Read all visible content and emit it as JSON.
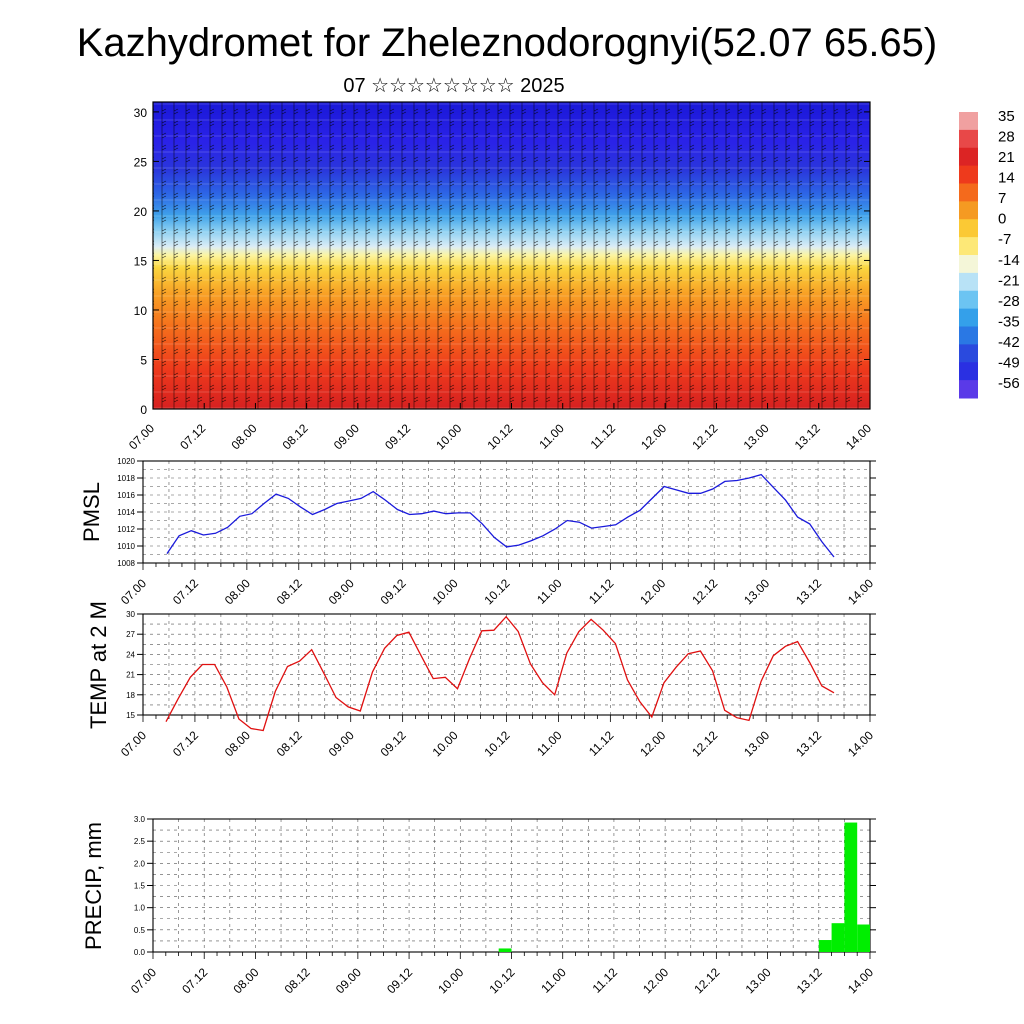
{
  "title": "Kazhydromet for Zheleznodorognyi(52.07 65.65)",
  "subtitle": "07 ☆☆☆☆☆☆☆☆ 2025",
  "colors": {
    "pmsl_line": "#1a1adb",
    "temp_line": "#e01010",
    "precip_bar": "#00ee00"
  },
  "chart_data": [
    {
      "type": "heatmap",
      "name": "cross-section",
      "x_tick_labels": [
        "07.00",
        "07.12",
        "08.00",
        "08.12",
        "09.00",
        "09.12",
        "10.00",
        "10.12",
        "11.00",
        "11.12",
        "12.00",
        "12.12",
        "13.00",
        "13.12",
        "14.00"
      ],
      "y_ticks": [
        0,
        5,
        10,
        15,
        20,
        25,
        30
      ],
      "ylim": [
        0,
        31
      ],
      "colorbar_labels": [
        "35",
        "28",
        "21",
        "14",
        "7",
        "0",
        "-7",
        "-14",
        "-21",
        "-28",
        "-35",
        "-42",
        "-49",
        "-56"
      ],
      "colorbar_values": [
        35,
        28,
        21,
        14,
        7,
        0,
        -7,
        -14,
        -21,
        -28,
        -35,
        -42,
        -49,
        -56
      ],
      "overlay": "wind barbs and streamlines"
    },
    {
      "type": "line",
      "name": "pmsl",
      "ylabel": "PMSL",
      "ylim": [
        1008,
        1020
      ],
      "y_ticks": [
        1008,
        1010,
        1012,
        1014,
        1016,
        1018,
        1020
      ],
      "x_tick_labels": [
        "07.00",
        "07.12",
        "08.00",
        "08.12",
        "09.00",
        "09.12",
        "10.00",
        "10.12",
        "11.00",
        "11.12",
        "12.00",
        "12.12",
        "13.00",
        "13.12",
        "14.00"
      ],
      "x_hours": [
        0,
        3,
        6,
        9,
        12,
        15,
        18,
        21,
        24,
        27,
        30,
        33,
        36,
        39,
        42,
        45,
        48,
        51,
        54,
        57,
        60,
        63,
        66,
        69,
        72,
        75,
        78,
        81,
        84,
        87,
        90,
        93,
        96,
        99,
        102,
        105,
        108,
        111,
        114,
        117,
        120,
        123,
        126,
        129,
        132,
        135,
        138,
        141,
        144,
        147,
        150,
        153,
        156,
        159,
        162,
        165
      ],
      "values": [
        1009.1,
        1011.2,
        1011.8,
        1011.3,
        1011.5,
        1012.2,
        1013.5,
        1013.8,
        1015.0,
        1016.1,
        1015.6,
        1014.6,
        1013.7,
        1014.3,
        1015.0,
        1015.3,
        1015.6,
        1016.4,
        1015.4,
        1014.3,
        1013.7,
        1013.8,
        1014.1,
        1013.8,
        1013.9,
        1013.9,
        1012.6,
        1011.0,
        1009.9,
        1010.1,
        1010.6,
        1011.2,
        1012.0,
        1013.0,
        1012.8,
        1012.1,
        1012.3,
        1012.5,
        1013.4,
        1014.2,
        1015.6,
        1017.0,
        1016.6,
        1016.2,
        1016.2,
        1016.7,
        1017.6,
        1017.7,
        1018.0,
        1018.4,
        1016.9,
        1015.4,
        1013.4,
        1012.6,
        1010.5,
        1008.7
      ]
    },
    {
      "type": "line",
      "name": "temperature",
      "ylabel": "TEMP at 2 M",
      "ylim": [
        15,
        30
      ],
      "y_ticks": [
        15,
        18,
        21,
        24,
        27,
        30
      ],
      "x_tick_labels": [
        "07.00",
        "07.12",
        "08.00",
        "08.12",
        "09.00",
        "09.12",
        "10.00",
        "10.12",
        "11.00",
        "11.12",
        "12.00",
        "12.12",
        "13.00",
        "13.12",
        "14.00"
      ],
      "x_hours": [
        0,
        3,
        6,
        9,
        12,
        15,
        18,
        21,
        24,
        27,
        30,
        33,
        36,
        39,
        42,
        45,
        48,
        51,
        54,
        57,
        60,
        63,
        66,
        69,
        72,
        75,
        78,
        81,
        84,
        87,
        90,
        93,
        96,
        99,
        102,
        105,
        108,
        111,
        114,
        117,
        120,
        123,
        126,
        129,
        132,
        135,
        138,
        141,
        144,
        147,
        150,
        153,
        156,
        159,
        162,
        165
      ],
      "values": [
        14.0,
        17.4,
        20.6,
        22.5,
        22.5,
        19.2,
        14.4,
        13.0,
        12.7,
        18.5,
        22.2,
        23.0,
        24.7,
        21.2,
        17.6,
        16.2,
        15.6,
        21.4,
        24.9,
        26.8,
        27.3,
        23.8,
        20.4,
        20.6,
        18.9,
        23.4,
        27.5,
        27.6,
        29.6,
        27.4,
        22.6,
        19.8,
        18.0,
        24.2,
        27.4,
        29.2,
        27.6,
        25.6,
        20.2,
        17.0,
        14.7,
        19.8,
        22.1,
        24.1,
        24.5,
        21.6,
        15.7,
        14.6,
        14.2,
        20.0,
        23.8,
        25.2,
        25.9,
        22.8,
        19.3,
        18.3
      ]
    },
    {
      "type": "bar",
      "name": "precipitation",
      "ylabel": "PRECIP, mm",
      "ylim": [
        0,
        3.0
      ],
      "y_ticks": [
        0.0,
        0.5,
        1.0,
        1.5,
        2.0,
        2.5,
        3.0
      ],
      "x_tick_labels": [
        "07.00",
        "07.12",
        "08.00",
        "08.12",
        "09.00",
        "09.12",
        "10.00",
        "10.12",
        "11.00",
        "11.12",
        "12.00",
        "12.12",
        "13.00",
        "13.12",
        "14.00"
      ],
      "bars": [
        {
          "start_hour": 81,
          "end_hour": 84,
          "value": 0.08
        },
        {
          "start_hour": 156,
          "end_hour": 159,
          "value": 0.27
        },
        {
          "start_hour": 159,
          "end_hour": 162,
          "value": 0.65
        },
        {
          "start_hour": 162,
          "end_hour": 165,
          "value": 2.92
        },
        {
          "start_hour": 165,
          "end_hour": 168,
          "value": 0.62
        }
      ]
    }
  ]
}
